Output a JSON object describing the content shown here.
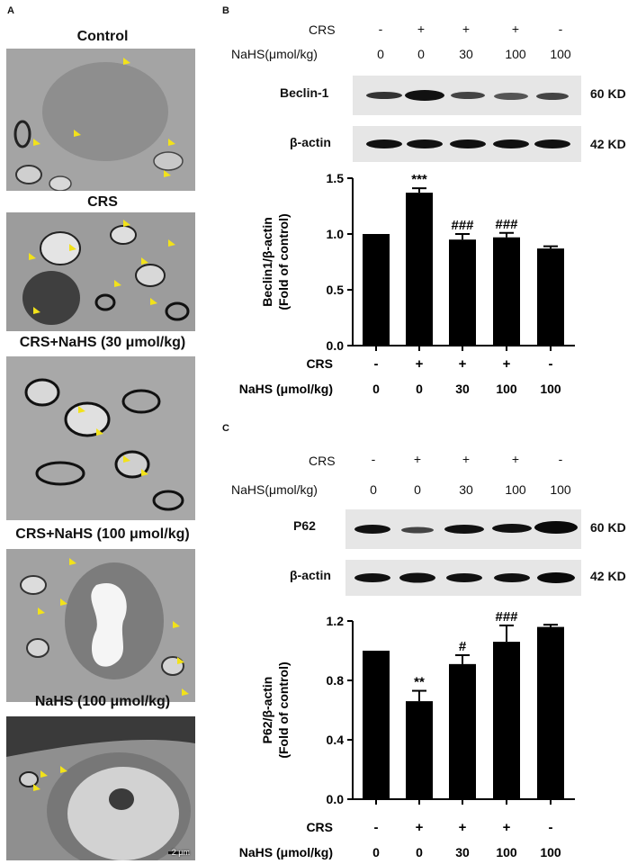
{
  "panelA": {
    "letter": "A",
    "images": [
      {
        "title": "Control"
      },
      {
        "title": "CRS"
      },
      {
        "title": "CRS+NaHS (30 μmol/kg)"
      },
      {
        "title": "CRS+NaHS (100 μmol/kg)"
      },
      {
        "title": "NaHS (100 μmol/kg)"
      }
    ],
    "scale_bar": "2 μm"
  },
  "panelB": {
    "letter": "B",
    "crs_label": "CRS",
    "nahs_label": "NaHS(μmol/kg)",
    "crs_values": [
      "-",
      "+",
      "+",
      "+",
      "-"
    ],
    "nahs_values": [
      "0",
      "0",
      "30",
      "100",
      "100"
    ],
    "blots": [
      {
        "name": "Beclin-1",
        "kd": "60 KD"
      },
      {
        "name": "β-actin",
        "kd": "42 KD"
      }
    ]
  },
  "panelC": {
    "letter": "C",
    "crs_label": "CRS",
    "nahs_label": "NaHS(μmol/kg)",
    "crs_values": [
      "-",
      "+",
      "+",
      "+",
      "-"
    ],
    "nahs_values": [
      "0",
      "0",
      "30",
      "100",
      "100"
    ],
    "blots": [
      {
        "name": "P62",
        "kd": "60 KD"
      },
      {
        "name": "β-actin",
        "kd": "42 KD"
      }
    ]
  },
  "chart_data": [
    {
      "type": "bar",
      "ylabel": "Beclin1/β-actin (Fold of control)",
      "ylim": [
        0,
        1.5
      ],
      "yticks": [
        "0.0",
        "0.5",
        "1.0",
        "1.5"
      ],
      "values": [
        1.0,
        1.37,
        0.95,
        0.97,
        0.87
      ],
      "errors": [
        0,
        0.04,
        0.05,
        0.04,
        0.02
      ],
      "annotations": [
        "",
        "***",
        "###",
        "###",
        ""
      ],
      "crs_label": "CRS",
      "nahs_label": "NaHS (μmol/kg)",
      "crs_values": [
        "-",
        "+",
        "+",
        "+",
        "-"
      ],
      "nahs_values": [
        "0",
        "0",
        "30",
        "100",
        "100"
      ]
    },
    {
      "type": "bar",
      "ylabel": "P62/β-actin (Fold of control)",
      "ylim": [
        0,
        1.2
      ],
      "yticks": [
        "0.0",
        "0.4",
        "0.8",
        "1.2"
      ],
      "values": [
        1.0,
        0.66,
        0.91,
        1.06,
        1.16
      ],
      "errors": [
        0,
        0.07,
        0.06,
        0.11,
        0.015
      ],
      "annotations": [
        "",
        "**",
        "#",
        "###",
        ""
      ],
      "crs_label": "CRS",
      "nahs_label": "NaHS (μmol/kg)",
      "crs_values": [
        "-",
        "+",
        "+",
        "+",
        "-"
      ],
      "nahs_values": [
        "0",
        "0",
        "30",
        "100",
        "100"
      ]
    }
  ]
}
